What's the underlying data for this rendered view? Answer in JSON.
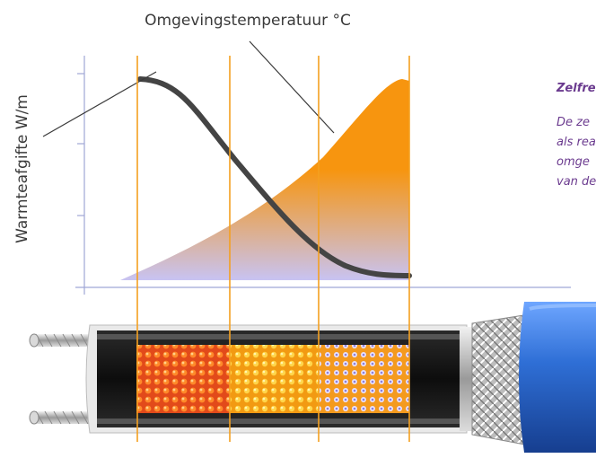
{
  "chart": {
    "top_label": "Omgevingstemperatuur °C",
    "y_label": "Warmteafgifte W/m"
  },
  "side_panel": {
    "title": "Zelfre",
    "lines": [
      "De ze",
      "als rea",
      "omge",
      "van de"
    ]
  },
  "colors": {
    "orange": "#f7950f",
    "lavender": "#c8c3f2",
    "curve": "#444444",
    "axis": "#9fa7d6",
    "guide": "#f4a020",
    "cable_blue": "#2f6fd6",
    "side_text": "#6b3b8f"
  },
  "icons": [
    "strand-wire-icon",
    "braid-shield-icon",
    "heating-core-pattern"
  ]
}
